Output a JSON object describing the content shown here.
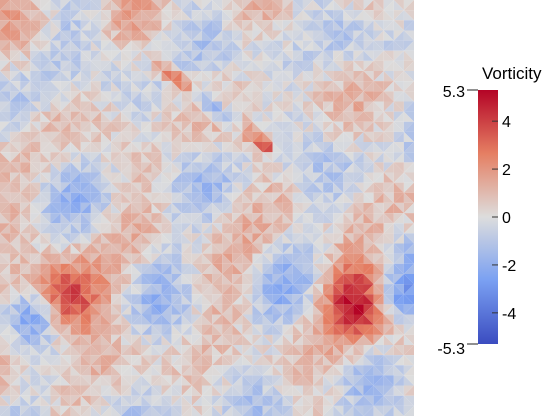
{
  "chart_data": {
    "type": "heatmap",
    "title": "",
    "colorbar": {
      "label": "Vorticity",
      "range": [
        -5.3,
        5.3
      ],
      "range_labels": [
        "5.3",
        "-5.3"
      ],
      "ticks": [
        {
          "value": 4,
          "label": "4"
        },
        {
          "value": 2,
          "label": "2"
        },
        {
          "value": 0,
          "label": "0"
        },
        {
          "value": -2,
          "label": "-2"
        },
        {
          "value": -4,
          "label": "-4"
        }
      ],
      "colormap": "cool-to-warm",
      "colors": {
        "negative": "#3b4cc0",
        "zero": "#dddddd",
        "positive": "#b40426"
      }
    },
    "features": [
      {
        "name": "strong positive/negative pair, lower-left",
        "sign": "mixed",
        "peak": 5.3
      },
      {
        "name": "strong positive/negative pair, lower-right",
        "sign": "mixed",
        "peak": 5.3
      },
      {
        "name": "diagonal filament, upper-centre",
        "sign": "mixed",
        "peak": 5.0
      }
    ]
  }
}
